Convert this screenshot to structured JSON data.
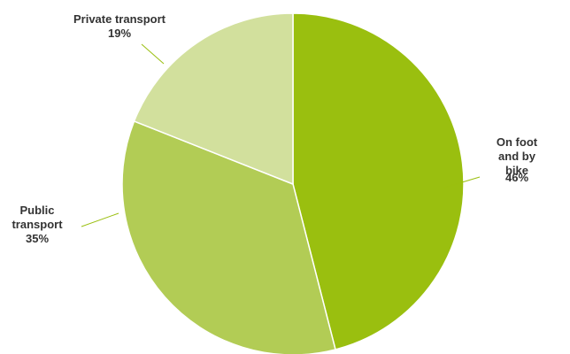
{
  "chart_data": {
    "type": "pie",
    "categories": [
      "On foot\nand by bike",
      "Public\ntransport",
      "Private transport"
    ],
    "values": [
      46,
      35,
      19
    ],
    "value_labels": [
      "46%",
      "35%",
      "19%"
    ],
    "colors": [
      "#9abf0f",
      "#b2cc55",
      "#d2e09d"
    ]
  }
}
